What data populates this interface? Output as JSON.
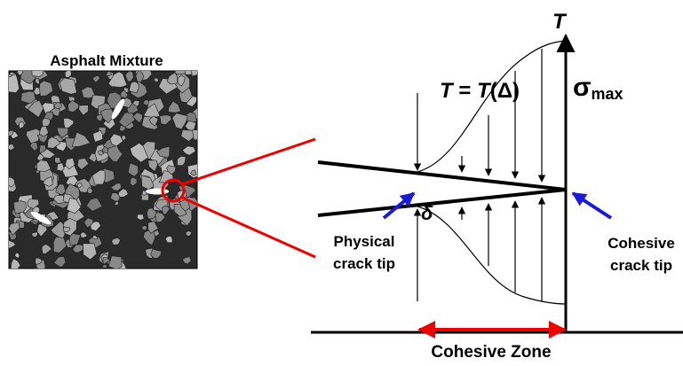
{
  "image_label": "Asphalt Mixture",
  "axis_label": "T",
  "law": {
    "lhs": "T",
    "equals": " = ",
    "rhs": "T",
    "arg": "(Δ)"
  },
  "peak": {
    "symbol": "σ",
    "subscript": "max"
  },
  "opening": "δ",
  "physical_tip": {
    "lines": [
      "Physical",
      "crack tip"
    ]
  },
  "cohesive_tip": {
    "lines": [
      "Cohesive",
      "crack tip"
    ]
  },
  "zone_label": "Cohesive Zone"
}
